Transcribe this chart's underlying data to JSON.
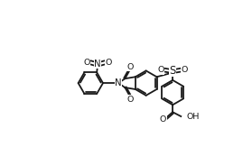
{
  "background": "#ffffff",
  "line_color": "#1a1a1a",
  "line_width": 1.3,
  "dbo": 0.09,
  "font_size": 6.8,
  "figsize": [
    2.69,
    1.73
  ],
  "dpi": 100,
  "xlim": [
    -1.5,
    8.5
  ],
  "ylim": [
    -1.5,
    5.5
  ]
}
